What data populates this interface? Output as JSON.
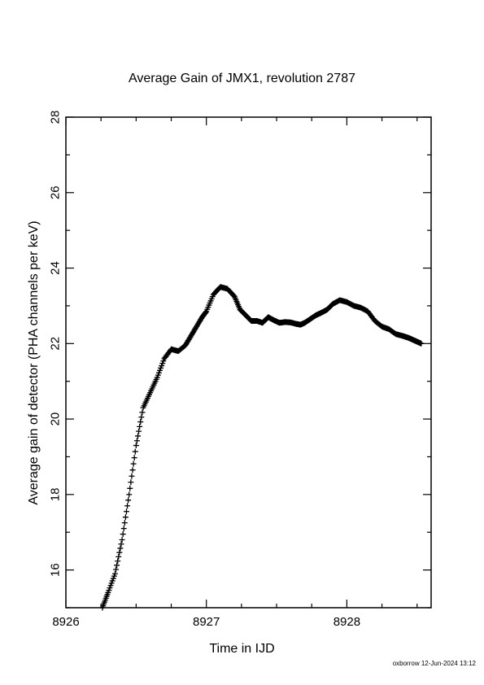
{
  "chart_data": {
    "type": "scatter",
    "title": "Average Gain of JMX1, revolution 2787",
    "xlabel": "Time in IJD",
    "ylabel": "Average gain of detector (PHA channels per keV)",
    "xlim": [
      8926,
      8928.6
    ],
    "ylim": [
      15,
      28
    ],
    "x_ticks": [
      8926,
      8927,
      8928
    ],
    "y_ticks": [
      16,
      18,
      20,
      22,
      24,
      26,
      28
    ],
    "marker": "plus",
    "grid": false,
    "series": [
      {
        "x": [
          8926.26,
          8926.3,
          8926.35,
          8926.4,
          8926.45,
          8926.5,
          8926.55,
          8926.6,
          8926.65,
          8926.7,
          8926.75,
          8926.8,
          8926.85,
          8926.89,
          8926.93,
          8926.97,
          8927.0,
          8927.05,
          8927.1,
          8927.15,
          8927.2,
          8927.24,
          8927.28,
          8927.32,
          8927.36,
          8927.4,
          8927.44,
          8927.48,
          8927.52,
          8927.56,
          8927.6,
          8927.64,
          8927.67,
          8927.7,
          8927.74,
          8927.78,
          8927.82,
          8927.86,
          8927.9,
          8927.95,
          8928.0,
          8928.05,
          8928.1,
          8928.15,
          8928.2,
          8928.25,
          8928.3,
          8928.35,
          8928.4,
          8928.44,
          8928.47,
          8928.5,
          8928.53
        ],
        "y": [
          15.0,
          15.4,
          15.9,
          16.8,
          18.0,
          19.3,
          20.3,
          20.7,
          21.1,
          21.6,
          21.85,
          21.8,
          21.95,
          22.2,
          22.45,
          22.7,
          22.85,
          23.3,
          23.5,
          23.45,
          23.25,
          22.9,
          22.75,
          22.6,
          22.6,
          22.55,
          22.7,
          22.62,
          22.55,
          22.57,
          22.56,
          22.52,
          22.5,
          22.55,
          22.65,
          22.75,
          22.82,
          22.9,
          23.05,
          23.15,
          23.1,
          23.0,
          22.95,
          22.85,
          22.6,
          22.45,
          22.38,
          22.25,
          22.2,
          22.15,
          22.1,
          22.05,
          22.0
        ]
      }
    ]
  },
  "footer": "oxborrow 12-Jun-2024 13:12"
}
